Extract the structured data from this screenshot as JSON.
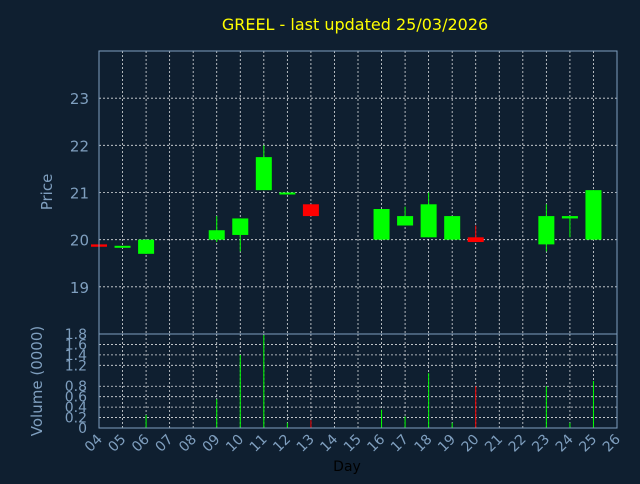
{
  "chart_data": [
    {
      "type": "candlestick",
      "title": "GREEL - last updated 25/03/2026",
      "ylabel": "Price",
      "ylim": [
        18,
        24
      ],
      "yticks": [
        19,
        20,
        21,
        22,
        23
      ],
      "grid": true,
      "colors": {
        "up": "#00ff00",
        "down": "#ff0000",
        "background": "#0f1f30",
        "axis_text": "#7f9fbf",
        "title": "#ffff00"
      },
      "candles": [
        {
          "day": "04",
          "open": 19.9,
          "high": 19.9,
          "low": 19.85,
          "close": 19.85
        },
        {
          "day": "05",
          "open": 19.85,
          "high": 19.85,
          "low": 19.85,
          "close": 19.87
        },
        {
          "day": "06",
          "open": 19.7,
          "high": 20.0,
          "low": 19.7,
          "close": 20.0
        },
        {
          "day": "09",
          "open": 20.0,
          "high": 20.5,
          "low": 19.95,
          "close": 20.2
        },
        {
          "day": "10",
          "open": 20.1,
          "high": 20.45,
          "low": 19.75,
          "close": 20.45
        },
        {
          "day": "11",
          "open": 21.05,
          "high": 22.0,
          "low": 21.05,
          "close": 21.75
        },
        {
          "day": "12",
          "open": 20.98,
          "high": 21.0,
          "low": 20.98,
          "close": 21.0
        },
        {
          "day": "13",
          "open": 20.75,
          "high": 20.75,
          "low": 20.5,
          "close": 20.5
        },
        {
          "day": "16",
          "open": 20.0,
          "high": 20.65,
          "low": 20.0,
          "close": 20.65
        },
        {
          "day": "17",
          "open": 20.3,
          "high": 20.7,
          "low": 20.3,
          "close": 20.5
        },
        {
          "day": "18",
          "open": 20.05,
          "high": 21.0,
          "low": 20.05,
          "close": 20.75
        },
        {
          "day": "19",
          "open": 20.0,
          "high": 20.5,
          "low": 20.0,
          "close": 20.5
        },
        {
          "day": "20",
          "open": 20.05,
          "high": 20.3,
          "low": 19.95,
          "close": 19.95
        },
        {
          "day": "23",
          "open": 19.9,
          "high": 20.75,
          "low": 19.75,
          "close": 20.5
        },
        {
          "day": "24",
          "open": 20.45,
          "high": 20.5,
          "low": 20.05,
          "close": 20.5
        },
        {
          "day": "25",
          "open": 20.0,
          "high": 21.05,
          "low": 20.0,
          "close": 21.05
        }
      ]
    },
    {
      "type": "bar",
      "ylabel": "Volume (0000)",
      "xlabel": "Day",
      "ylim": [
        0,
        1.8
      ],
      "yticks": [
        "0",
        "0.2",
        "0.4",
        "0.6",
        "0.8",
        "1.2",
        "1.4",
        "1.6",
        "1.8"
      ],
      "ytick_values": [
        0,
        0.2,
        0.4,
        0.6,
        0.8,
        1.2,
        1.4,
        1.6,
        1.8
      ],
      "grid": true,
      "categories": [
        "04",
        "05",
        "06",
        "07",
        "08",
        "09",
        "10",
        "11",
        "12",
        "13",
        "14",
        "15",
        "16",
        "17",
        "18",
        "19",
        "20",
        "21",
        "22",
        "23",
        "24",
        "25",
        "26"
      ],
      "volumes": [
        {
          "day": "04",
          "value": 0.01
        },
        {
          "day": "05",
          "value": 0.01
        },
        {
          "day": "06",
          "value": 0.25
        },
        {
          "day": "09",
          "value": 0.55
        },
        {
          "day": "10",
          "value": 1.4
        },
        {
          "day": "11",
          "value": 1.78
        },
        {
          "day": "12",
          "value": 0.1
        },
        {
          "day": "13",
          "value": 0.15
        },
        {
          "day": "16",
          "value": 0.35
        },
        {
          "day": "17",
          "value": 0.22
        },
        {
          "day": "18",
          "value": 1.05
        },
        {
          "day": "19",
          "value": 0.1
        },
        {
          "day": "20",
          "value": 0.8
        },
        {
          "day": "23",
          "value": 0.8
        },
        {
          "day": "24",
          "value": 0.1
        },
        {
          "day": "25",
          "value": 0.9
        }
      ]
    }
  ]
}
